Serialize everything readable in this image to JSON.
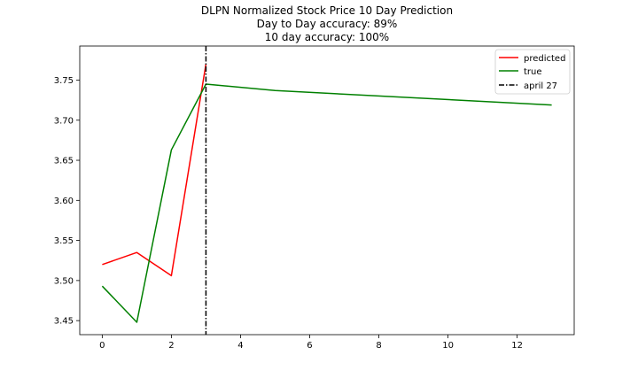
{
  "chart_data": {
    "type": "line",
    "title": [
      "DLPN Normalized Stock Price 10 Day Prediction",
      "Day to Day accuracy: 89%",
      "10 day accuracy: 100%"
    ],
    "xlabel": "",
    "ylabel": "",
    "xlim": [
      -0.65,
      13.65
    ],
    "ylim": [
      3.4325,
      3.7925
    ],
    "x_ticks": [
      0,
      2,
      4,
      6,
      8,
      10,
      12
    ],
    "y_ticks": [
      3.45,
      3.5,
      3.55,
      3.6,
      3.65,
      3.7,
      3.75
    ],
    "x_tick_labels": [
      "0",
      "2",
      "4",
      "6",
      "8",
      "10",
      "12"
    ],
    "y_tick_labels": [
      "3.45",
      "3.50",
      "3.55",
      "3.60",
      "3.65",
      "3.70",
      "3.75"
    ],
    "grid": false,
    "legend_position": "top-right",
    "series": [
      {
        "name": "predicted",
        "color": "#ff0000",
        "style": "solid",
        "x": [
          0,
          1,
          2,
          3
        ],
        "y": [
          3.52,
          3.535,
          3.506,
          3.77
        ]
      },
      {
        "name": "true",
        "color": "#008000",
        "style": "solid",
        "x": [
          0,
          1,
          2,
          3,
          5,
          13
        ],
        "y": [
          3.493,
          3.448,
          3.663,
          3.745,
          3.737,
          3.719
        ]
      }
    ],
    "vlines": [
      {
        "name": "april 27",
        "x": 3,
        "color": "#000000",
        "style": "dashdot"
      }
    ]
  }
}
